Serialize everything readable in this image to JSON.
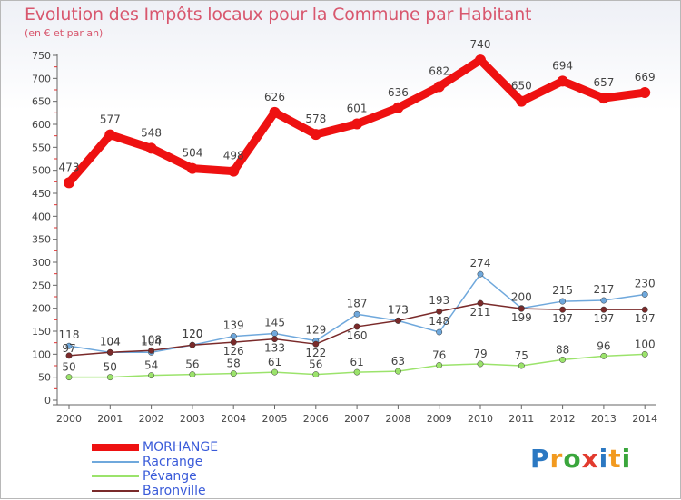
{
  "title": "Evolution des Impôts locaux pour la Commune par Habitant",
  "subtitle": "(en € et par an)",
  "brand": "Proxiti",
  "chart_data": {
    "type": "line",
    "title": "Evolution des Impôts locaux pour la Commune par Habitant",
    "subtitle": "(en € et par an)",
    "xlabel": "",
    "ylabel": "",
    "ylim": [
      0,
      750
    ],
    "yticks": [
      0,
      50,
      100,
      150,
      200,
      250,
      300,
      350,
      400,
      450,
      500,
      550,
      600,
      650,
      700,
      750
    ],
    "grid": false,
    "legend_position": "bottom-left",
    "x": [
      "2000",
      "2001",
      "2002",
      "2003",
      "2004",
      "2005",
      "2006",
      "2007",
      "2008",
      "2009",
      "2010",
      "2011",
      "2012",
      "2013",
      "2014"
    ],
    "series": [
      {
        "name": "MORHANGE",
        "color": "#ee1111",
        "values": [
          473,
          577,
          548,
          504,
          498,
          626,
          578,
          601,
          636,
          682,
          740,
          650,
          694,
          657,
          669
        ]
      },
      {
        "name": "Racrange",
        "color": "#6fa8dc",
        "values": [
          118,
          104,
          104,
          120,
          139,
          145,
          129,
          187,
          173,
          148,
          274,
          200,
          215,
          217,
          230
        ]
      },
      {
        "name": "Pévange",
        "color": "#9be36b",
        "values": [
          50,
          50,
          54,
          56,
          58,
          61,
          56,
          61,
          63,
          76,
          79,
          75,
          88,
          96,
          100
        ]
      },
      {
        "name": "Baronville",
        "color": "#7a2a2a",
        "values": [
          97,
          104,
          108,
          120,
          126,
          133,
          122,
          160,
          173,
          193,
          211,
          199,
          197,
          197,
          197
        ]
      }
    ]
  }
}
